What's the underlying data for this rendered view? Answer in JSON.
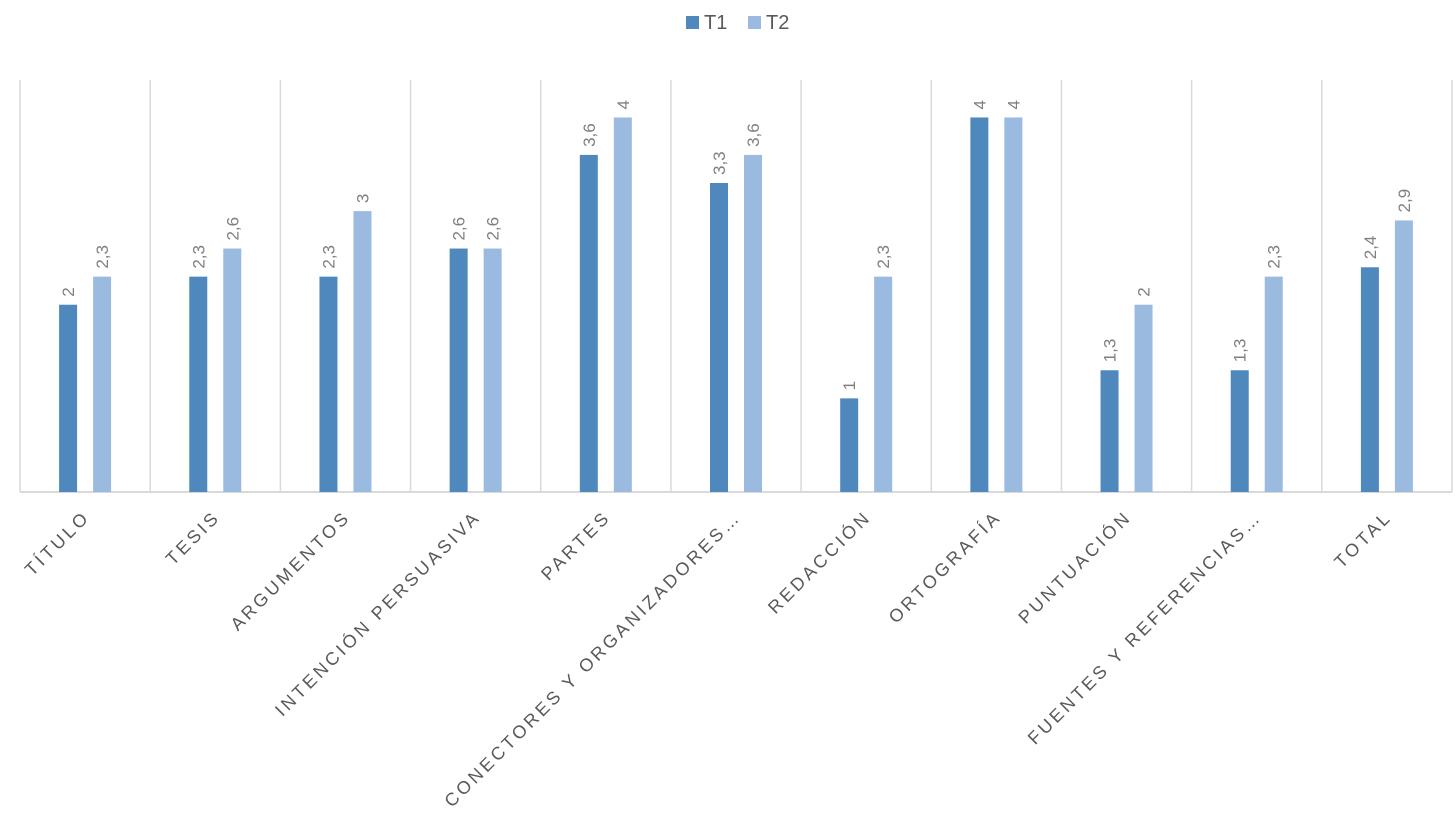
{
  "chart_data": {
    "type": "bar",
    "categories": [
      "TÍTULO",
      "TESIS",
      "ARGUMENTOS",
      "INTENCIÓN PERSUASIVA",
      "PARTES",
      "CONECTORES Y ORGANIZADORES…",
      "REDACCIÓN",
      "ORTOGRAFÍA",
      "PUNTUACIÓN",
      "FUENTES Y REFERENCIAS…",
      "TOTAL"
    ],
    "series": [
      {
        "name": "T1",
        "color": "#4f88bd",
        "values": [
          2,
          2.3,
          2.3,
          2.6,
          3.6,
          3.3,
          1,
          4,
          1.3,
          1.3,
          2.4
        ],
        "labels": [
          "2",
          "2,3",
          "2,3",
          "2,6",
          "3,6",
          "3,3",
          "1",
          "4",
          "1,3",
          "1,3",
          "2,4"
        ]
      },
      {
        "name": "T2",
        "color": "#9bbae0",
        "values": [
          2.3,
          2.6,
          3,
          2.6,
          4,
          3.6,
          2.3,
          4,
          2,
          2.3,
          2.9
        ],
        "labels": [
          "2,3",
          "2,6",
          "3",
          "2,6",
          "4",
          "3,6",
          "2,3",
          "4",
          "2",
          "2,3",
          "2,9"
        ]
      }
    ],
    "ylim": [
      0,
      4.4
    ],
    "legend": "top-center",
    "grid": "vertical-category-separators",
    "title": "",
    "xlabel": "",
    "ylabel": ""
  }
}
